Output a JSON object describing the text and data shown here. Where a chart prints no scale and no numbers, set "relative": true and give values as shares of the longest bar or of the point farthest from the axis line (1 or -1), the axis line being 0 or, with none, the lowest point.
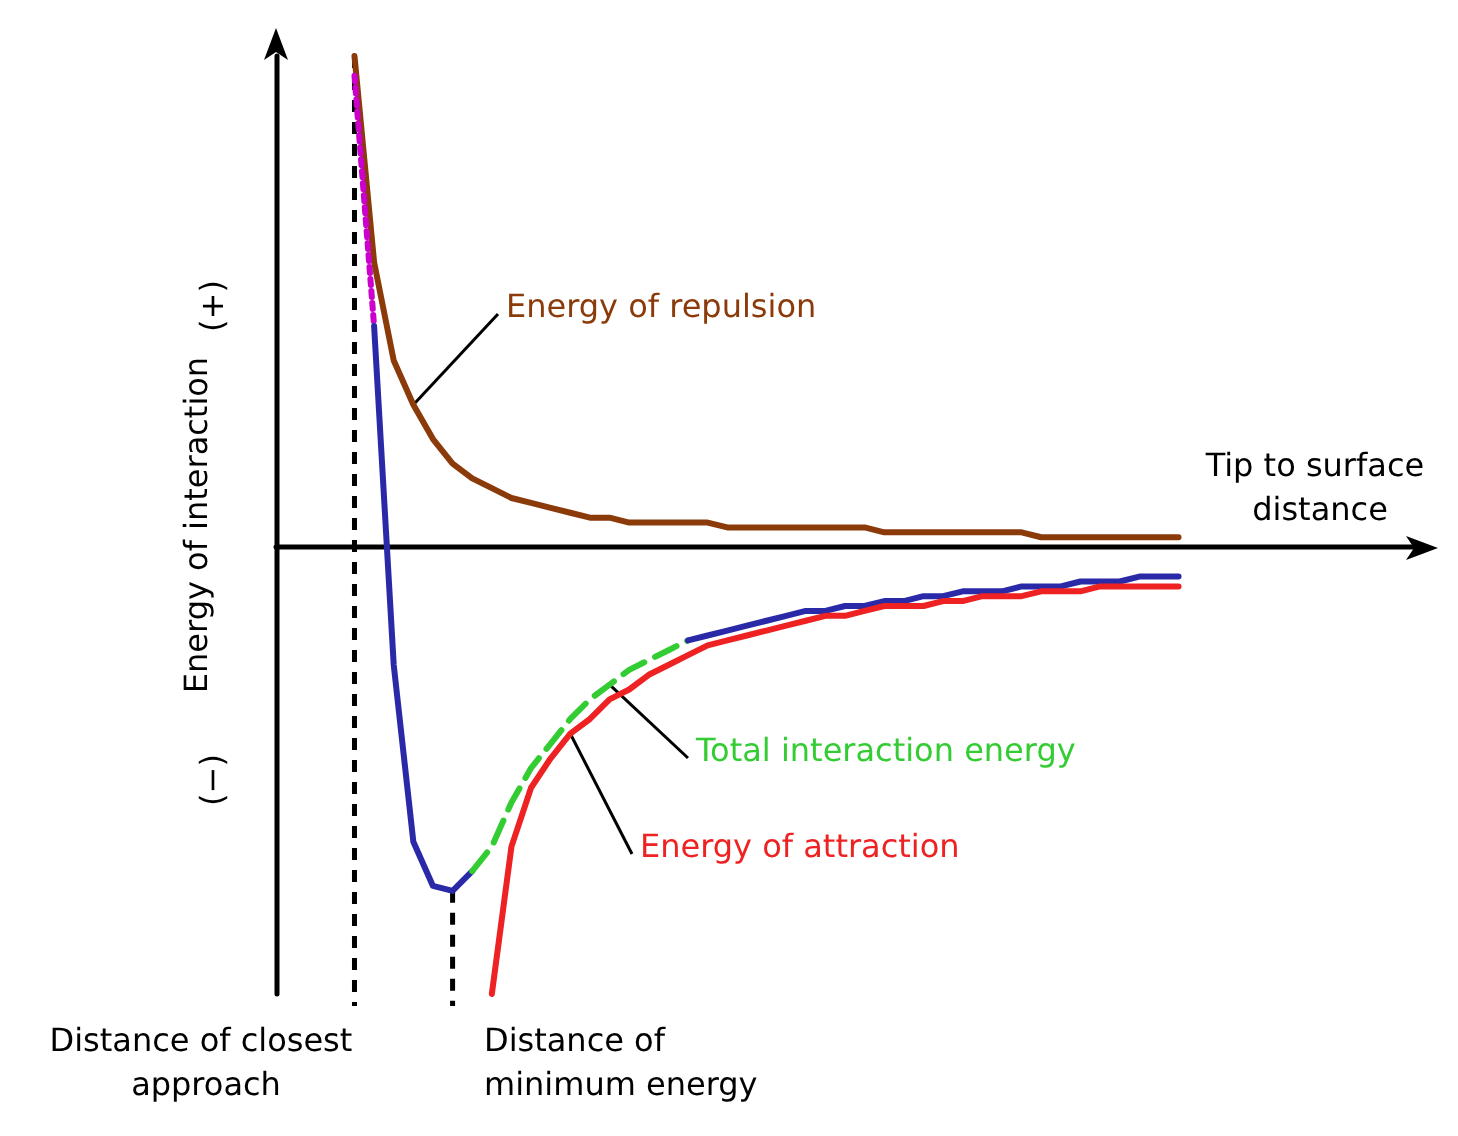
{
  "chart_data": {
    "type": "line",
    "relative": true,
    "ylabel": "Energy of interaction",
    "xlabel": "Tip to surface distance",
    "grid": false,
    "legend": false,
    "marker": "none",
    "annotations": [
      "(+)",
      "(−)",
      "Distance of closest approach",
      "Distance of minimum energy"
    ],
    "categories": [
      null,
      null,
      null,
      null,
      null,
      null,
      null,
      null,
      null,
      null,
      null,
      null,
      null,
      null,
      null,
      null,
      null,
      null,
      null,
      null,
      null,
      null,
      null,
      null,
      null,
      null,
      null,
      null,
      null,
      null,
      null,
      null,
      null,
      null,
      null,
      null,
      null,
      null,
      null,
      null,
      null,
      null,
      null,
      null,
      null,
      null,
      null,
      null,
      null,
      null,
      null,
      null,
      null,
      null,
      null,
      null,
      null,
      null,
      null
    ],
    "series": [
      {
        "name": "Energy of repulsion",
        "color": "#8b3a0a",
        "line_style": "solid",
        "values": [
          null,
          null,
          null,
          null,
          1.0,
          0.58,
          0.38,
          0.29,
          0.22,
          0.17,
          0.14,
          0.12,
          0.1,
          0.09,
          0.08,
          0.07,
          0.06,
          0.06,
          0.05,
          0.05,
          0.05,
          0.05,
          0.05,
          0.04,
          0.04,
          0.04,
          0.04,
          0.04,
          0.04,
          0.04,
          0.04,
          0.03,
          0.03,
          0.03,
          0.03,
          0.03,
          0.03,
          0.03,
          0.03,
          0.02,
          0.02,
          0.02,
          0.02,
          0.02,
          0.02,
          0.02,
          0.02,
          null,
          null,
          null,
          null,
          null,
          null,
          null,
          null,
          null,
          null,
          null,
          null
        ]
      },
      {
        "color": "#cc00cc",
        "line_style": "dotted",
        "values": [
          null,
          null,
          null,
          null,
          0.96,
          0.45,
          null,
          null,
          null,
          null,
          null,
          null,
          null,
          null,
          null,
          null,
          null,
          null,
          null,
          null,
          null,
          null,
          null,
          null,
          null,
          null,
          null,
          null,
          null,
          null,
          null,
          null,
          null,
          null,
          null,
          null,
          null,
          null,
          null,
          null,
          null,
          null,
          null,
          null,
          null,
          null,
          null,
          null,
          null,
          null,
          null,
          null,
          null,
          null,
          null,
          null,
          null,
          null,
          null
        ]
      },
      {
        "color": "#2a2aa8",
        "line_style": "solid",
        "values": [
          null,
          null,
          null,
          null,
          null,
          0.45,
          -0.24,
          -0.6,
          -0.69,
          -0.7,
          -0.66,
          null,
          null,
          null,
          null,
          null,
          null,
          null,
          null,
          null,
          null,
          null,
          null,
          null,
          null,
          null,
          null,
          null,
          null,
          null,
          null,
          null,
          null,
          null,
          null,
          null,
          null,
          null,
          null,
          null,
          null,
          null,
          null,
          null,
          null,
          null,
          null,
          null,
          null,
          null,
          null,
          null,
          null,
          null,
          null,
          null,
          null,
          null,
          null
        ]
      },
      {
        "name": "Total interaction energy",
        "color": "#33cc33",
        "line_style": "dashed",
        "values": [
          null,
          null,
          null,
          null,
          null,
          null,
          null,
          null,
          null,
          null,
          -0.66,
          -0.61,
          -0.52,
          -0.45,
          -0.4,
          -0.35,
          -0.31,
          -0.28,
          -0.25,
          -0.23,
          -0.21,
          -0.19,
          null,
          null,
          null,
          null,
          null,
          null,
          null,
          null,
          null,
          null,
          null,
          null,
          null,
          null,
          null,
          null,
          null,
          null,
          null,
          null,
          null,
          null,
          null,
          null,
          null,
          null,
          null,
          null,
          null,
          null,
          null,
          null,
          null,
          null,
          null,
          null,
          null
        ]
      },
      {
        "color": "#2a2aa8",
        "line_style": "solid",
        "values": [
          null,
          null,
          null,
          null,
          null,
          null,
          null,
          null,
          null,
          null,
          null,
          null,
          null,
          null,
          null,
          null,
          null,
          null,
          null,
          null,
          null,
          -0.19,
          -0.18,
          -0.17,
          -0.16,
          -0.15,
          -0.14,
          -0.13,
          -0.13,
          -0.12,
          -0.12,
          -0.11,
          -0.11,
          -0.1,
          -0.1,
          -0.09,
          -0.09,
          -0.09,
          -0.08,
          -0.08,
          -0.08,
          -0.07,
          -0.07,
          -0.07,
          -0.06,
          -0.06,
          -0.06,
          null,
          null,
          null,
          null,
          null,
          null,
          null,
          null,
          null,
          null,
          null,
          null
        ]
      },
      {
        "name": "Energy of attraction",
        "color": "#ee2222",
        "line_style": "solid",
        "values": [
          null,
          null,
          null,
          null,
          null,
          null,
          null,
          null,
          null,
          null,
          null,
          -0.91,
          -0.61,
          -0.49,
          -0.43,
          -0.38,
          -0.35,
          -0.31,
          -0.29,
          -0.26,
          -0.24,
          -0.22,
          -0.2,
          -0.19,
          -0.18,
          -0.17,
          -0.16,
          -0.15,
          -0.14,
          -0.14,
          -0.13,
          -0.12,
          -0.12,
          -0.12,
          -0.11,
          -0.11,
          -0.1,
          -0.1,
          -0.1,
          -0.09,
          -0.09,
          -0.09,
          -0.08,
          -0.08,
          -0.08,
          -0.08,
          -0.08,
          null,
          null,
          null,
          null,
          null,
          null,
          null,
          null,
          null,
          null,
          null,
          null
        ]
      }
    ]
  }
}
